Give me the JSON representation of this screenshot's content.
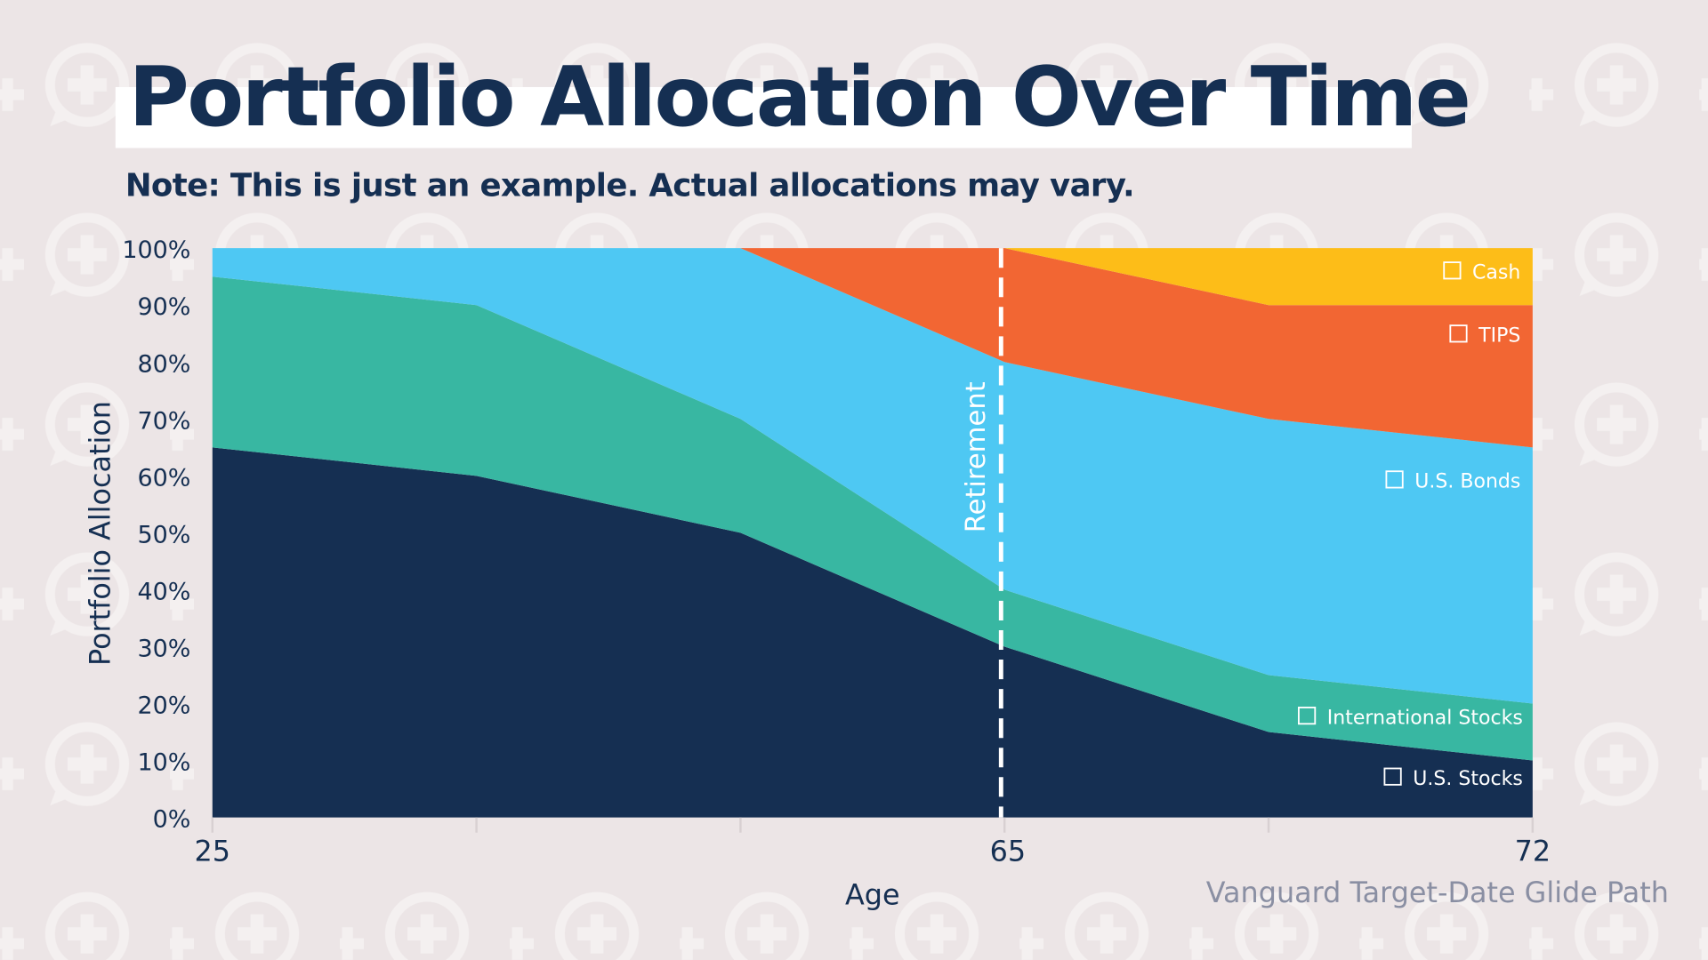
{
  "title": "Portfolio Allocation Over Time",
  "subtitle": "Note: This is just an example. Actual allocations may vary.",
  "source": "Vanguard Target-Date Glide Path",
  "chart_data": {
    "type": "area",
    "stacked": true,
    "xlabel": "Age",
    "ylabel": "Portfolio Allocation",
    "x_tick_labels": [
      "25",
      "",
      "",
      "65",
      "",
      "72"
    ],
    "y_ticks": [
      "0%",
      "10%",
      "20%",
      "30%",
      "40%",
      "50%",
      "60%",
      "70%",
      "80%",
      "90%",
      "100%"
    ],
    "ylim": [
      0,
      100
    ],
    "grid": false,
    "legend": "inline-right",
    "series": [
      {
        "name": "U.S. Stocks",
        "color": "#152f52",
        "values": [
          65,
          60,
          50,
          30,
          15,
          10
        ]
      },
      {
        "name": "International Stocks",
        "color": "#38b7a2",
        "values": [
          30,
          30,
          20,
          10,
          10,
          10
        ]
      },
      {
        "name": "U.S. Bonds",
        "color": "#4ec8f3",
        "values": [
          5,
          10,
          30,
          40,
          45,
          45
        ]
      },
      {
        "name": "TIPS",
        "color": "#f26633",
        "values": [
          0,
          0,
          0,
          20,
          20,
          25
        ]
      },
      {
        "name": "Cash",
        "color": "#fdbd18",
        "values": [
          0,
          0,
          0,
          0,
          10,
          10
        ]
      }
    ],
    "annotations": [
      {
        "label": "Retirement",
        "x": "65",
        "style": "dashed-vertical-line"
      }
    ]
  },
  "colors": {
    "background": "#ece5e6",
    "text": "#152f52",
    "source_text": "#8a8fa3"
  }
}
